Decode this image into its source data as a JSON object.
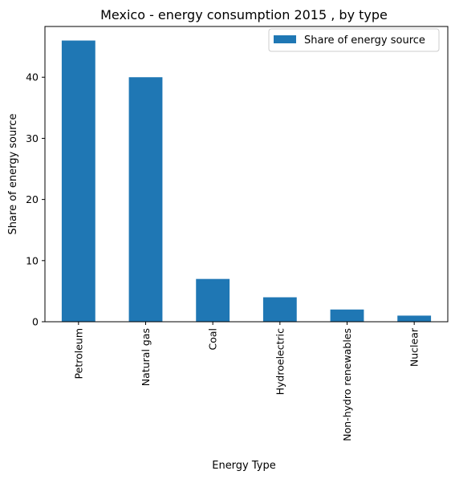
{
  "chart_data": {
    "type": "bar",
    "title": "Mexico - energy consumption 2015 , by type",
    "xlabel": "Energy Type",
    "ylabel": "Share of energy source",
    "categories": [
      "Petroleum",
      "Natural gas",
      "Coal",
      "Hydroelectric",
      "Non-hydro renewables",
      "Nuclear"
    ],
    "series": [
      {
        "name": "Share of energy source",
        "values": [
          46,
          40,
          7,
          4,
          2,
          1
        ]
      }
    ],
    "ylim": [
      0,
      48.3
    ],
    "yticks": [
      "0",
      "10",
      "20",
      "30",
      "40"
    ],
    "grid": false,
    "legend_position": "top-right",
    "colors": {
      "bar": "#1f77b4"
    }
  }
}
